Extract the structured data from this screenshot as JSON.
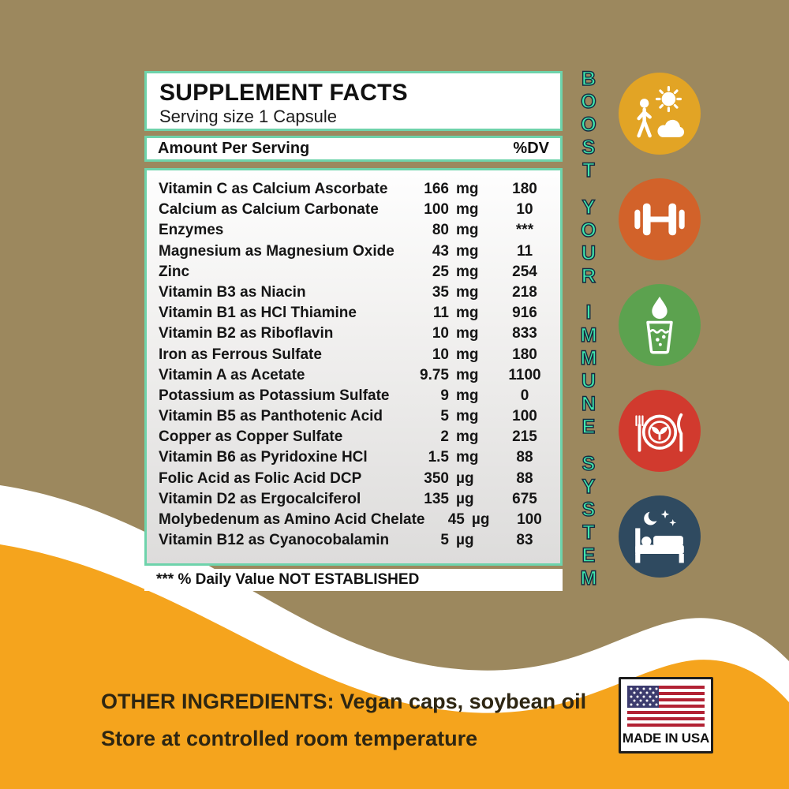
{
  "colors": {
    "background_khaki": "#9C885E",
    "bottom_orange": "#F5A41D",
    "wave_white": "#FFFFFF",
    "panel_border_teal": "#6ED3AB",
    "banner_mint": "#3FE5AC",
    "banner_outline": "#152A40",
    "text_dark": "#151515",
    "bottom_text_brown": "#2E2612"
  },
  "supplement_panel": {
    "title": "SUPPLEMENT FACTS",
    "serving_size": "Serving size 1 Capsule",
    "amount_header": "Amount Per Serving",
    "dv_header": "%DV",
    "rows": [
      {
        "name": "Vitamin C as Calcium Ascorbate",
        "amount": "166",
        "unit": "mg",
        "dv": "180"
      },
      {
        "name": "Calcium as Calcium Carbonate",
        "amount": "100",
        "unit": "mg",
        "dv": "10"
      },
      {
        "name": "Enzymes",
        "amount": "80",
        "unit": "mg",
        "dv": "***"
      },
      {
        "name": "Magnesium as Magnesium Oxide",
        "amount": "43",
        "unit": "mg",
        "dv": "11"
      },
      {
        "name": "Zinc",
        "amount": "25",
        "unit": "mg",
        "dv": "254"
      },
      {
        "name": "Vitamin B3 as Niacin",
        "amount": "35",
        "unit": "mg",
        "dv": "218"
      },
      {
        "name": "Vitamin B1 as HCl Thiamine",
        "amount": "11",
        "unit": "mg",
        "dv": "916"
      },
      {
        "name": "Vitamin B2 as Riboflavin",
        "amount": "10",
        "unit": "mg",
        "dv": "833"
      },
      {
        "name": "Iron as Ferrous Sulfate",
        "amount": "10",
        "unit": "mg",
        "dv": "180"
      },
      {
        "name": "Vitamin A as Acetate",
        "amount": "9.75",
        "unit": "mg",
        "dv": "1100"
      },
      {
        "name": "Potassium as Potassium Sulfate",
        "amount": "9",
        "unit": "mg",
        "dv": "0"
      },
      {
        "name": "Vitamin B5 as Panthotenic Acid",
        "amount": "5",
        "unit": "mg",
        "dv": "100"
      },
      {
        "name": "Copper as Copper Sulfate",
        "amount": "2",
        "unit": "mg",
        "dv": "215"
      },
      {
        "name": "Vitamin B6  as Pyridoxine HCl",
        "amount": "1.5",
        "unit": "mg",
        "dv": "88"
      },
      {
        "name": "Folic Acid as Folic Acid DCP",
        "amount": "350",
        "unit": "µg",
        "dv": "88"
      },
      {
        "name": "Vitamin D2 as Ergocalciferol",
        "amount": "135",
        "unit": "µg",
        "dv": "675"
      },
      {
        "name": "Molybedenum as Amino Acid Chelate",
        "amount": "45",
        "unit": "µg",
        "dv": "100"
      },
      {
        "name": "Vitamin B12 as Cyanocobalamin",
        "amount": "5",
        "unit": "µg",
        "dv": "83"
      }
    ],
    "footnote": "*** % Daily Value NOT ESTABLISHED"
  },
  "vertical_banner": {
    "words": [
      "BOOST",
      "YOUR",
      "IMMUNE",
      "SYSTEM"
    ],
    "color": "#3FE5AC"
  },
  "benefit_icons": [
    {
      "name": "outdoor-sun-activity",
      "color": "#E2A425"
    },
    {
      "name": "exercise-dumbbell",
      "color": "#D2622A"
    },
    {
      "name": "hydration-water",
      "color": "#5CA24F"
    },
    {
      "name": "healthy-meal",
      "color": "#D13A2E"
    },
    {
      "name": "restful-sleep",
      "color": "#2F4A60"
    }
  ],
  "bottom": {
    "other_ingredients": "OTHER INGREDIENTS:  Vegan caps, soybean oil",
    "storage": "Store at controlled room temperature",
    "made_in": "MADE IN USA"
  }
}
